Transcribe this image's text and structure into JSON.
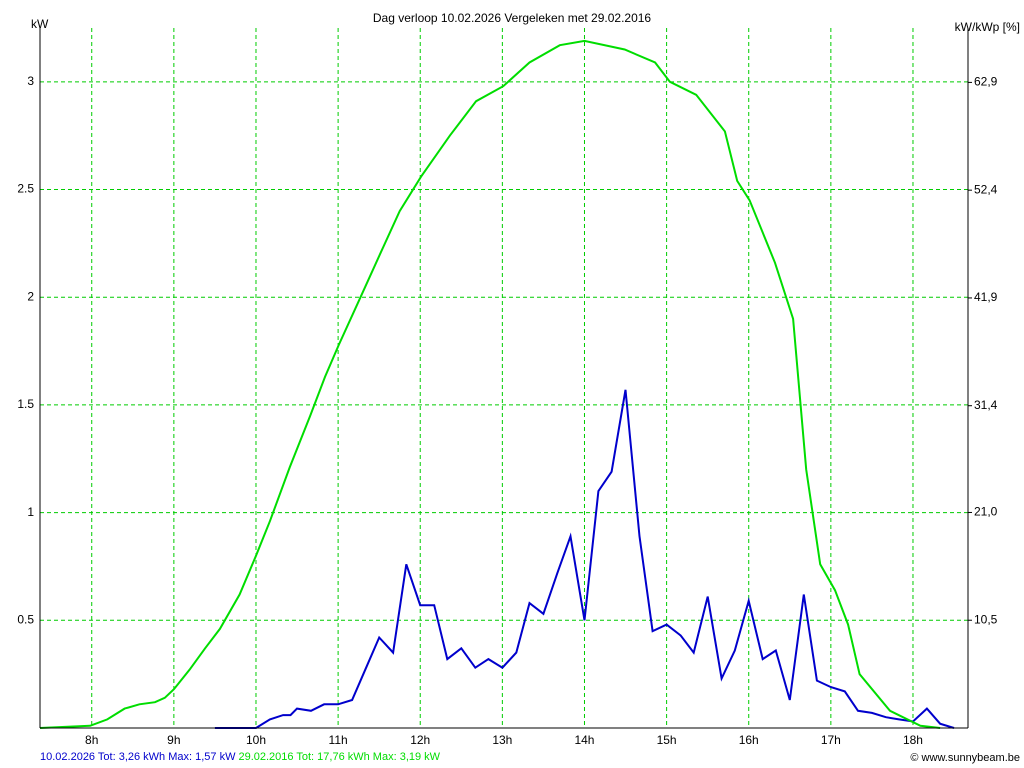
{
  "chart_data": {
    "type": "line",
    "title": "Dag  verloop 10.02.2026   Vergeleken met 29.02.2016",
    "y_label": "kW",
    "y2_label": "kW/kWp [%]",
    "credit": "© www.sunnybeam.be",
    "xlim": [
      7.37,
      18.67
    ],
    "xticks": [
      {
        "value": 8,
        "label": "8h"
      },
      {
        "value": 9,
        "label": "9h"
      },
      {
        "value": 10,
        "label": "10h"
      },
      {
        "value": 11,
        "label": "11h"
      },
      {
        "value": 12,
        "label": "12h"
      },
      {
        "value": 13,
        "label": "13h"
      },
      {
        "value": 14,
        "label": "14h"
      },
      {
        "value": 15,
        "label": "15h"
      },
      {
        "value": 16,
        "label": "16h"
      },
      {
        "value": 17,
        "label": "17h"
      },
      {
        "value": 18,
        "label": "18h"
      }
    ],
    "ylim": [
      0,
      3.25
    ],
    "yticks": [
      0.5,
      1,
      1.5,
      2,
      2.5,
      3
    ],
    "y2lim": [
      0,
      68.2
    ],
    "y2ticks": [
      {
        "value": 10.5,
        "label": "10,5"
      },
      {
        "value": 21,
        "label": "21,0"
      },
      {
        "value": 31.4,
        "label": "31,4"
      },
      {
        "value": 41.9,
        "label": "41,9"
      },
      {
        "value": 52.4,
        "label": "52,4"
      },
      {
        "value": 62.9,
        "label": "62,9"
      }
    ],
    "grid": true,
    "grid_color": "#00cc00",
    "series": [
      {
        "name": "10.02.2026 Tot: 3,26 kWh Max: 1,57 kW",
        "color": "#0000cc",
        "x": [
          9.5,
          9.67,
          9.83,
          10.0,
          10.17,
          10.33,
          10.42,
          10.5,
          10.67,
          10.83,
          11.0,
          11.17,
          11.33,
          11.5,
          11.67,
          11.83,
          12.0,
          12.17,
          12.33,
          12.5,
          12.67,
          12.83,
          13.0,
          13.17,
          13.33,
          13.5,
          13.67,
          13.83,
          14.0,
          14.17,
          14.33,
          14.5,
          14.67,
          14.83,
          15.0,
          15.17,
          15.33,
          15.5,
          15.67,
          15.83,
          16.0,
          16.17,
          16.33,
          16.5,
          16.67,
          16.83,
          17.0,
          17.17,
          17.33,
          17.5,
          17.67,
          17.83,
          18.0,
          18.17,
          18.33,
          18.5
        ],
        "values": [
          0,
          0,
          0,
          0,
          0.04,
          0.06,
          0.06,
          0.09,
          0.08,
          0.11,
          0.11,
          0.13,
          0.27,
          0.42,
          0.35,
          0.76,
          0.57,
          0.57,
          0.32,
          0.37,
          0.28,
          0.32,
          0.28,
          0.35,
          0.58,
          0.53,
          0.72,
          0.89,
          0.5,
          1.1,
          1.19,
          1.57,
          0.89,
          0.45,
          0.48,
          0.43,
          0.35,
          0.61,
          0.23,
          0.36,
          0.59,
          0.32,
          0.36,
          0.13,
          0.62,
          0.22,
          0.19,
          0.17,
          0.08,
          0.07,
          0.05,
          0.04,
          0.03,
          0.09,
          0.02,
          0
        ]
      },
      {
        "name": "29.02.2016 Tot: 17,76 kWh Max: 3,19 kW",
        "color": "#00dd00",
        "x": [
          7.37,
          7.98,
          8.19,
          8.4,
          8.58,
          8.77,
          8.89,
          9.0,
          9.19,
          9.38,
          9.56,
          9.8,
          10.0,
          10.17,
          10.41,
          10.66,
          10.84,
          11.01,
          11.26,
          11.51,
          11.75,
          12.01,
          12.36,
          12.68,
          13.01,
          13.33,
          13.7,
          14.0,
          14.49,
          14.86,
          15.04,
          15.36,
          15.71,
          15.86,
          16.01,
          16.32,
          16.54,
          16.7,
          16.87,
          17.05,
          17.21,
          17.35,
          17.72,
          18.09,
          18.33
        ],
        "values": [
          0,
          0.01,
          0.04,
          0.09,
          0.11,
          0.12,
          0.14,
          0.18,
          0.27,
          0.37,
          0.46,
          0.62,
          0.8,
          0.96,
          1.21,
          1.45,
          1.63,
          1.78,
          1.99,
          2.2,
          2.4,
          2.56,
          2.75,
          2.91,
          2.98,
          3.09,
          3.17,
          3.19,
          3.15,
          3.09,
          3.0,
          2.94,
          2.77,
          2.54,
          2.45,
          2.16,
          1.9,
          1.2,
          0.76,
          0.64,
          0.48,
          0.25,
          0.08,
          0.01,
          0
        ]
      }
    ]
  }
}
